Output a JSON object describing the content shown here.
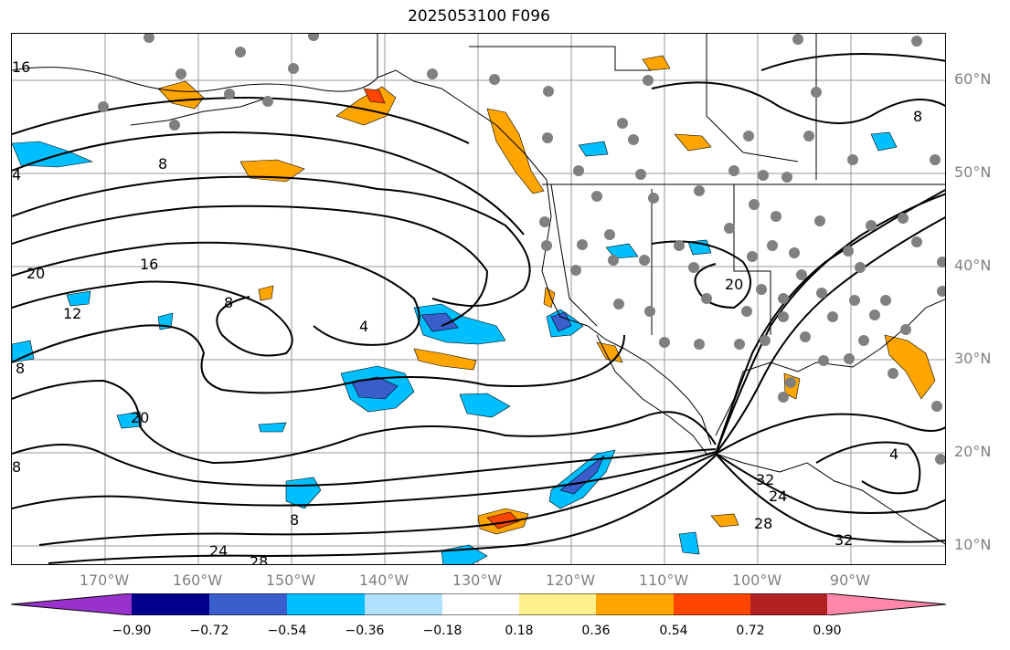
{
  "title": "2025053100 F096",
  "lat_labels": [
    "60°N",
    "50°N",
    "40°N",
    "30°N",
    "20°N",
    "10°N"
  ],
  "lon_labels": [
    "170°W",
    "160°W",
    "150°W",
    "140°W",
    "130°W",
    "120°W",
    "110°W",
    "100°W",
    "90°W"
  ],
  "contour_labels": [
    "8",
    "16",
    "20",
    "12",
    "8",
    "8",
    "4",
    "20",
    "8",
    "16",
    "4",
    "20",
    "24",
    "28",
    "8",
    "28",
    "32",
    "32",
    "24",
    "4",
    "8"
  ],
  "colorbar": {
    "ticks": [
      "−0.90",
      "−0.72",
      "−0.54",
      "−0.36",
      "−0.18",
      "0.18",
      "0.36",
      "0.54",
      "0.72",
      "0.90"
    ],
    "colors": [
      "#9932cc",
      "#00008b",
      "#3a5fcd",
      "#00bfff",
      "#b0e2ff",
      "#ffffff",
      "#fff08c",
      "#ffa500",
      "#ff4500",
      "#b22222",
      "#ff88aa"
    ]
  }
}
